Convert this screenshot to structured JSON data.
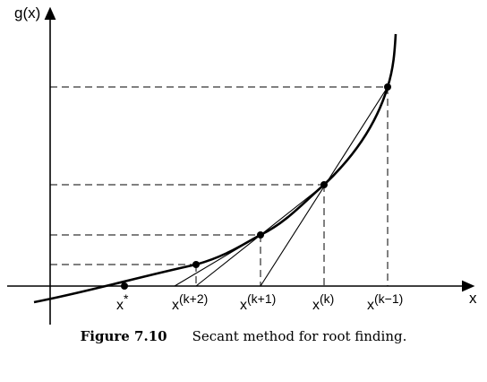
{
  "axes": {
    "y_label": "g(x)",
    "x_label": "x"
  },
  "ticks": [
    {
      "base": "x",
      "sup": "*"
    },
    {
      "base": "x",
      "sup": "(k+2)"
    },
    {
      "base": "x",
      "sup": "(k+1)"
    },
    {
      "base": "x",
      "sup": "(k)"
    },
    {
      "base": "x",
      "sup": "(k−1)"
    }
  ],
  "caption": {
    "number": "Figure 7.10",
    "text": "Secant method for root finding."
  }
}
